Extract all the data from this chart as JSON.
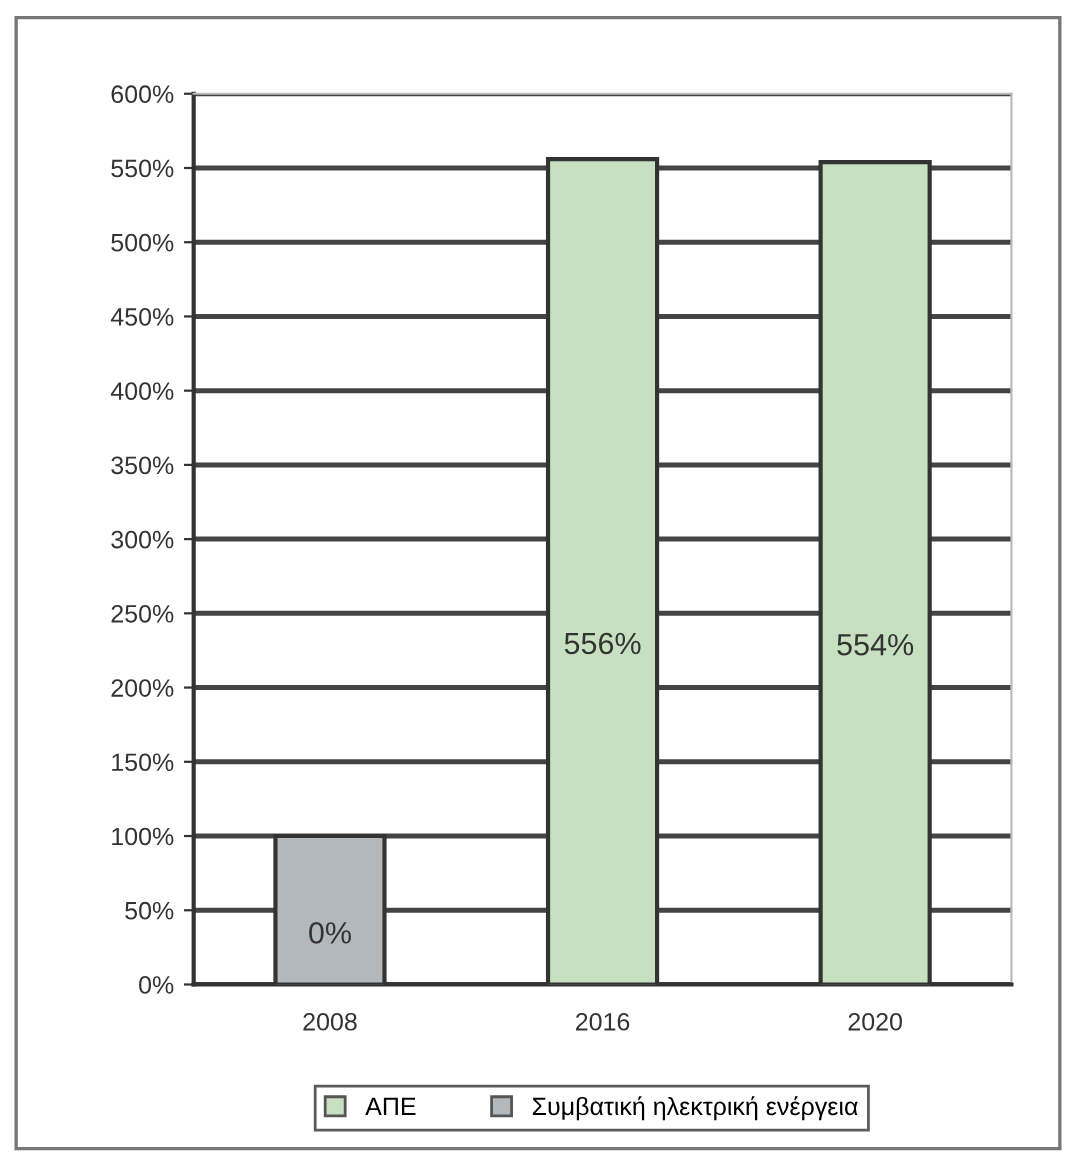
{
  "chart_data": {
    "type": "bar",
    "categories": [
      "2008",
      "2016",
      "2020"
    ],
    "series": [
      {
        "name": "ΑΠΕ",
        "color": "#c6e0c0",
        "values": [
          null,
          556,
          554
        ],
        "value_labels": [
          null,
          "556%",
          "554%"
        ]
      },
      {
        "name": "Συμβατική ηλεκτρική ενέργεια",
        "color": "#b3b8bc",
        "values": [
          100,
          null,
          null
        ]
      }
    ],
    "annotations": [
      "0%"
    ],
    "ylim": [
      0,
      600
    ],
    "yticks": [
      {
        "value": 0,
        "label": "0%"
      },
      {
        "value": 50,
        "label": "50%"
      },
      {
        "value": 100,
        "label": "100%"
      },
      {
        "value": 150,
        "label": "150%"
      },
      {
        "value": 200,
        "label": "200%"
      },
      {
        "value": 250,
        "label": "250%"
      },
      {
        "value": 300,
        "label": "300%"
      },
      {
        "value": 350,
        "label": "350%"
      },
      {
        "value": 400,
        "label": "400%"
      },
      {
        "value": 450,
        "label": "450%"
      },
      {
        "value": 500,
        "label": "500%"
      },
      {
        "value": 550,
        "label": "550%"
      },
      {
        "value": 600,
        "label": "600%"
      }
    ],
    "grid": "y",
    "legend": "bottom"
  }
}
